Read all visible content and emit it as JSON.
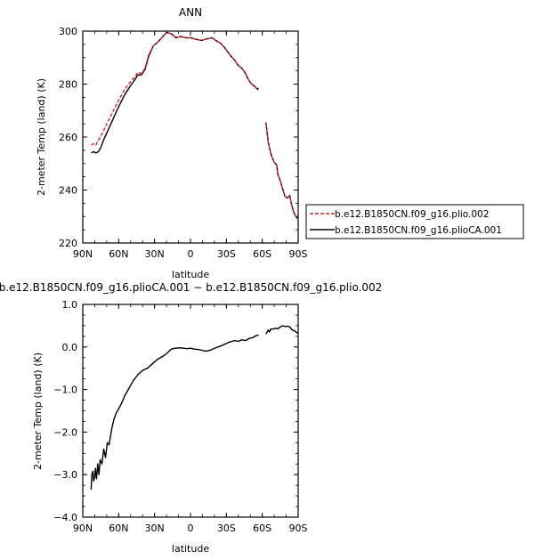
{
  "colors": {
    "red": "#d62728",
    "black": "#000000"
  },
  "chart_data": [
    {
      "type": "line",
      "title": "ANN",
      "xlabel": "latitude",
      "ylabel": "2-meter Temp (land) (K)",
      "xlim": [
        90,
        -90
      ],
      "ylim": [
        220,
        300
      ],
      "xticks": [
        90,
        60,
        30,
        0,
        -30,
        -60,
        -90
      ],
      "xtick_labels": [
        "90N",
        "60N",
        "30N",
        "0",
        "30S",
        "60S",
        "90S"
      ],
      "yticks": [
        220,
        240,
        260,
        280,
        300
      ],
      "ytick_labels": [
        "220",
        "240",
        "260",
        "280",
        "300"
      ],
      "legend": {
        "placement": "right",
        "entries": [
          {
            "label": "b.e12.B1850CN.f09_g16.plio.002",
            "color": "#d62728",
            "dash": true
          },
          {
            "label": "b.e12.B1850CN.f09_g16.plioCA.001",
            "color": "#000000",
            "dash": false
          }
        ]
      },
      "series": [
        {
          "name": "b.e12.B1850CN.f09_g16.plio.002",
          "color": "#d62728",
          "dash": true,
          "segments": [
            [
              [
                83,
                257
              ],
              [
                81,
                257.5
              ],
              [
                79,
                257
              ],
              [
                78,
                258
              ],
              [
                76,
                259.5
              ],
              [
                73,
                262
              ],
              [
                70,
                265
              ],
              [
                65,
                269.5
              ],
              [
                60,
                274
              ],
              [
                55,
                278
              ],
              [
                50,
                281
              ],
              [
                46,
                283
              ],
              [
                44,
                284.5
              ],
              [
                41,
                284
              ],
              [
                38,
                286
              ],
              [
                35,
                291
              ],
              [
                31,
                294.5
              ],
              [
                27,
                296
              ],
              [
                23,
                298
              ],
              [
                20,
                299.5
              ],
              [
                16,
                299
              ],
              [
                12,
                297.5
              ],
              [
                8,
                298
              ],
              [
                4,
                297.5
              ],
              [
                0,
                297.5
              ],
              [
                -4,
                297
              ],
              [
                -9,
                296.5
              ],
              [
                -13,
                297
              ],
              [
                -18,
                297.5
              ],
              [
                -21,
                296.5
              ],
              [
                -25,
                295.5
              ],
              [
                -29,
                293.5
              ],
              [
                -33,
                291
              ],
              [
                -37,
                289
              ],
              [
                -40,
                287
              ],
              [
                -43,
                286
              ],
              [
                -46,
                284
              ],
              [
                -48,
                282
              ],
              [
                -51,
                280
              ],
              [
                -54,
                279
              ],
              [
                -56,
                278
              ],
              [
                -57,
                278.5
              ]
            ],
            [
              [
                -63,
                265
              ],
              [
                -64,
                262
              ],
              [
                -65,
                258
              ],
              [
                -67,
                254
              ],
              [
                -68,
                252.5
              ],
              [
                -70,
                250.5
              ],
              [
                -72,
                249.5
              ],
              [
                -73,
                246
              ],
              [
                -75,
                243.5
              ],
              [
                -77,
                240.5
              ],
              [
                -79,
                237.5
              ],
              [
                -81,
                237
              ],
              [
                -83,
                238
              ],
              [
                -84,
                235.5
              ],
              [
                -86,
                232
              ],
              [
                -88,
                230
              ],
              [
                -90,
                229
              ]
            ]
          ]
        },
        {
          "name": "b.e12.B1850CN.f09_g16.plioCA.001",
          "color": "#000000",
          "dash": false,
          "segments": [
            [
              [
                83,
                254
              ],
              [
                81,
                254.5
              ],
              [
                79,
                254
              ],
              [
                77,
                254.5
              ],
              [
                75,
                256
              ],
              [
                73,
                258.5
              ],
              [
                70,
                261.5
              ],
              [
                65,
                266.5
              ],
              [
                60,
                271.5
              ],
              [
                55,
                276
              ],
              [
                50,
                279.5
              ],
              [
                46,
                282
              ],
              [
                44,
                283.5
              ],
              [
                41,
                283.5
              ],
              [
                38,
                285.5
              ],
              [
                35,
                290.5
              ],
              [
                31,
                294.5
              ],
              [
                27,
                296
              ],
              [
                23,
                298
              ],
              [
                20,
                299.5
              ],
              [
                16,
                299
              ],
              [
                12,
                297.5
              ],
              [
                8,
                298
              ],
              [
                4,
                297.5
              ],
              [
                0,
                297.5
              ],
              [
                -4,
                297
              ],
              [
                -9,
                296.5
              ],
              [
                -13,
                297
              ],
              [
                -18,
                297.5
              ],
              [
                -21,
                296.5
              ],
              [
                -25,
                295.5
              ],
              [
                -29,
                293.5
              ],
              [
                -33,
                291
              ],
              [
                -37,
                289
              ],
              [
                -40,
                287
              ],
              [
                -43,
                286
              ],
              [
                -46,
                284
              ],
              [
                -48,
                282
              ],
              [
                -51,
                280
              ],
              [
                -54,
                279
              ],
              [
                -56,
                278
              ],
              [
                -57,
                278.5
              ]
            ],
            [
              [
                -63,
                265.5
              ],
              [
                -64,
                262
              ],
              [
                -65,
                258
              ],
              [
                -67,
                254
              ],
              [
                -68,
                252.5
              ],
              [
                -70,
                250.5
              ],
              [
                -72,
                249.5
              ],
              [
                -73,
                246
              ],
              [
                -75,
                243.5
              ],
              [
                -77,
                240.5
              ],
              [
                -79,
                237.5
              ],
              [
                -81,
                237
              ],
              [
                -83,
                238
              ],
              [
                -84,
                235.5
              ],
              [
                -86,
                232
              ],
              [
                -88,
                230
              ],
              [
                -90,
                229
              ]
            ]
          ]
        }
      ]
    },
    {
      "type": "line",
      "title": "b.e12.B1850CN.f09_g16.plioCA.001 − b.e12.B1850CN.f09_g16.plio.002",
      "xlabel": "latitude",
      "ylabel": "2-meter Temp (land) (K)",
      "xlim": [
        90,
        -90
      ],
      "ylim": [
        -4.0,
        1.0
      ],
      "xticks": [
        90,
        60,
        30,
        0,
        -30,
        -60,
        -90
      ],
      "xtick_labels": [
        "90N",
        "60N",
        "30N",
        "0",
        "30S",
        "60S",
        "90S"
      ],
      "yticks": [
        -4,
        -3,
        -2,
        -1,
        0,
        1
      ],
      "ytick_labels": [
        "−4.0",
        "−3.0",
        "−2.0",
        "−1.0",
        "0.0",
        "1.0"
      ],
      "series": [
        {
          "color": "#000000",
          "dash": false,
          "segments": [
            [
              [
                83,
                -3.35
              ],
              [
                82.5,
                -3.0
              ],
              [
                81.5,
                -2.92
              ],
              [
                81,
                -3.15
              ],
              [
                80,
                -3.05
              ],
              [
                79.5,
                -2.85
              ],
              [
                78.5,
                -3.1
              ],
              [
                77.5,
                -2.75
              ],
              [
                76.5,
                -3.0
              ],
              [
                75.5,
                -2.65
              ],
              [
                74,
                -2.75
              ],
              [
                72.5,
                -2.4
              ],
              [
                71,
                -2.6
              ],
              [
                69.5,
                -2.25
              ],
              [
                68,
                -2.3
              ],
              [
                66,
                -1.95
              ],
              [
                64,
                -1.7
              ],
              [
                62,
                -1.55
              ],
              [
                60,
                -1.45
              ],
              [
                58,
                -1.35
              ],
              [
                55,
                -1.15
              ],
              [
                52,
                -1.0
              ],
              [
                48,
                -0.8
              ],
              [
                44,
                -0.65
              ],
              [
                40,
                -0.55
              ],
              [
                36,
                -0.5
              ],
              [
                32,
                -0.4
              ],
              [
                28,
                -0.3
              ],
              [
                25,
                -0.25
              ],
              [
                22,
                -0.2
              ],
              [
                19,
                -0.13
              ],
              [
                16,
                -0.05
              ],
              [
                13,
                -0.03
              ],
              [
                8,
                -0.02
              ],
              [
                3,
                -0.04
              ],
              [
                0,
                -0.03
              ],
              [
                -3,
                -0.05
              ],
              [
                -7,
                -0.06
              ],
              [
                -10,
                -0.08
              ],
              [
                -13,
                -0.1
              ],
              [
                -17,
                -0.07
              ],
              [
                -21,
                -0.02
              ],
              [
                -25,
                0.02
              ],
              [
                -29,
                0.07
              ],
              [
                -33,
                0.12
              ],
              [
                -37,
                0.15
              ],
              [
                -40,
                0.13
              ],
              [
                -43,
                0.17
              ],
              [
                -46,
                0.15
              ],
              [
                -49,
                0.2
              ],
              [
                -52,
                0.22
              ],
              [
                -55,
                0.27
              ],
              [
                -57,
                0.28
              ]
            ],
            [
              [
                -63,
                0.3
              ],
              [
                -64,
                0.35
              ],
              [
                -65,
                0.4
              ],
              [
                -66,
                0.35
              ],
              [
                -67,
                0.42
              ],
              [
                -69,
                0.42
              ],
              [
                -71,
                0.44
              ],
              [
                -73,
                0.43
              ],
              [
                -75,
                0.47
              ],
              [
                -77,
                0.5
              ],
              [
                -79,
                0.48
              ],
              [
                -81,
                0.49
              ],
              [
                -83,
                0.47
              ],
              [
                -85,
                0.4
              ],
              [
                -87,
                0.38
              ],
              [
                -89,
                0.33
              ],
              [
                -90,
                0.35
              ]
            ]
          ]
        }
      ]
    }
  ]
}
